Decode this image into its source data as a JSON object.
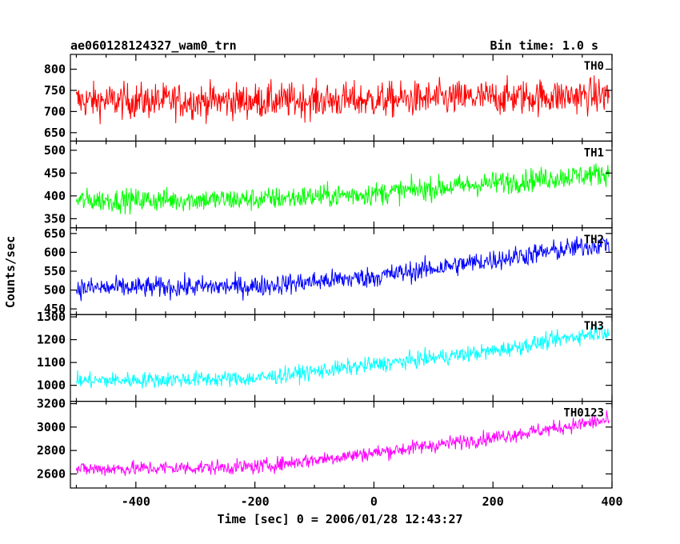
{
  "header": {
    "title": "ae060128124327_wam0_trn",
    "bin_time": "Bin time: 1.0 s"
  },
  "chart_data": {
    "type": "line",
    "xlabel": "Time [sec] 0 = 2006/01/28 12:43:27",
    "ylabel": "Counts/sec",
    "xlim": [
      -510,
      400
    ],
    "xticks": [
      -400,
      -200,
      0,
      200,
      400
    ],
    "x_range": [
      -500,
      395
    ],
    "bin_time_s": 1.0,
    "panels": [
      {
        "name": "TH0",
        "color": "#ff0000",
        "ylim": [
          630,
          835
        ],
        "yticks": [
          650,
          700,
          750,
          800
        ],
        "trend": [
          [
            -500,
            725
          ],
          [
            -200,
            725
          ],
          [
            0,
            727
          ],
          [
            200,
            733
          ],
          [
            395,
            738
          ]
        ],
        "noise": 30
      },
      {
        "name": "TH1",
        "color": "#00ff00",
        "ylim": [
          330,
          520
        ],
        "yticks": [
          350,
          400,
          450,
          500
        ],
        "trend": [
          [
            -500,
            390
          ],
          [
            -200,
            392
          ],
          [
            0,
            405
          ],
          [
            200,
            428
          ],
          [
            395,
            450
          ]
        ],
        "noise": 18
      },
      {
        "name": "TH2",
        "color": "#0000ff",
        "ylim": [
          435,
          665
        ],
        "yticks": [
          450,
          500,
          550,
          600,
          650
        ],
        "trend": [
          [
            -500,
            505
          ],
          [
            -200,
            510
          ],
          [
            0,
            535
          ],
          [
            200,
            580
          ],
          [
            395,
            625
          ]
        ],
        "noise": 20
      },
      {
        "name": "TH3",
        "color": "#00ffff",
        "ylim": [
          930,
          1310
        ],
        "yticks": [
          1000,
          1100,
          1200,
          1300
        ],
        "trend": [
          [
            -500,
            1020
          ],
          [
            -200,
            1030
          ],
          [
            0,
            1090
          ],
          [
            200,
            1150
          ],
          [
            395,
            1240
          ]
        ],
        "noise": 25
      },
      {
        "name": "TH0123",
        "color": "#ff00ff",
        "ylim": [
          2480,
          3220
        ],
        "yticks": [
          2600,
          2800,
          3000,
          3200
        ],
        "trend": [
          [
            -500,
            2640
          ],
          [
            -200,
            2660
          ],
          [
            0,
            2780
          ],
          [
            200,
            2910
          ],
          [
            395,
            3060
          ]
        ],
        "noise": 45
      }
    ]
  }
}
